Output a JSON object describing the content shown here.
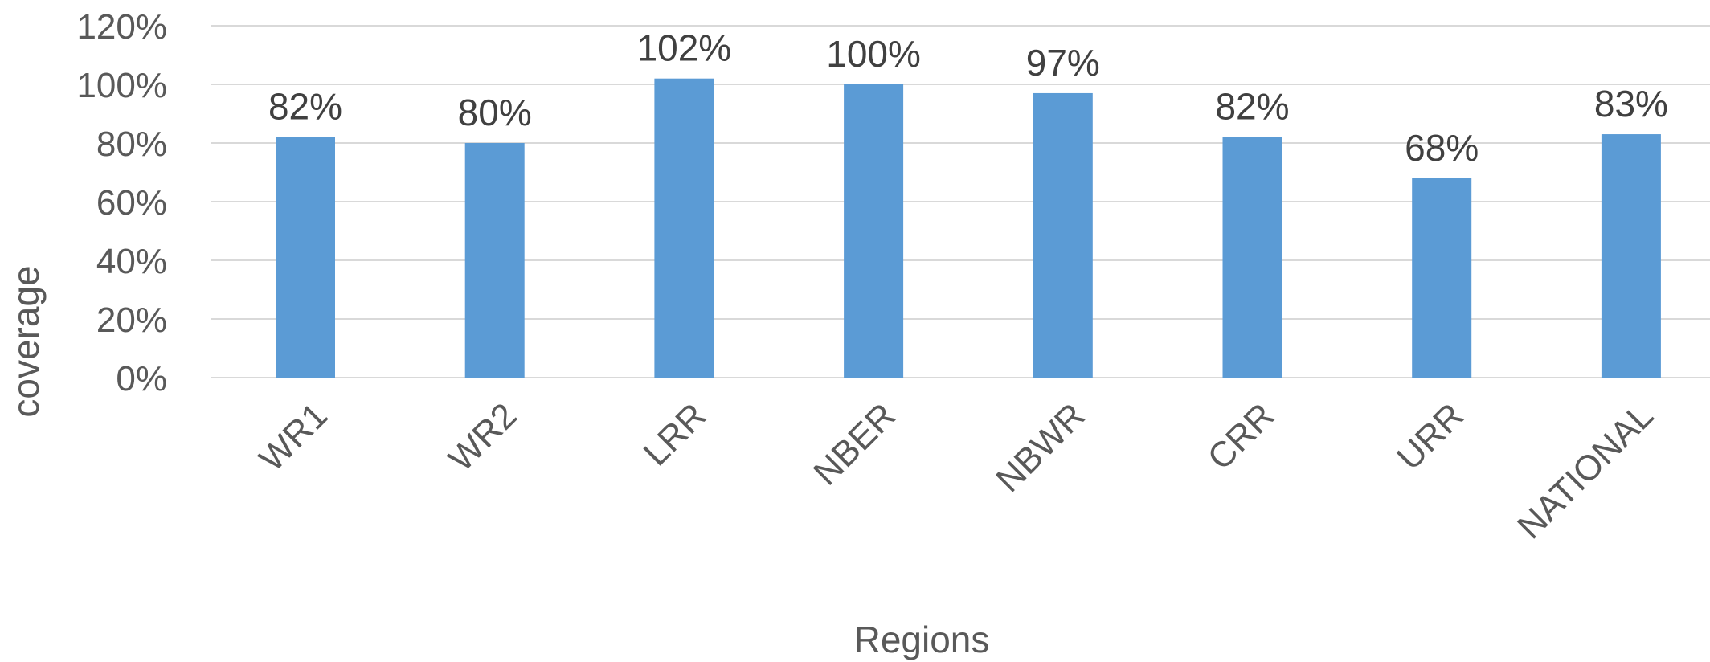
{
  "chart_data": {
    "type": "bar",
    "categories": [
      "WR1",
      "WR2",
      "LRR",
      "NBER",
      "NBWR",
      "CRR",
      "URR",
      "NATIONAL"
    ],
    "values": [
      82,
      80,
      102,
      100,
      97,
      82,
      68,
      83
    ],
    "data_labels": [
      "82%",
      "80%",
      "102%",
      "100%",
      "97%",
      "82%",
      "68%",
      "83%"
    ],
    "xlabel": "Regions",
    "ylabel": "coverage",
    "ylim": [
      0,
      120
    ],
    "yticks": [
      0,
      20,
      40,
      60,
      80,
      100,
      120
    ],
    "ytick_labels": [
      "0%",
      "20%",
      "40%",
      "60%",
      "80%",
      "100%",
      "120%"
    ],
    "grid": true,
    "legend": false,
    "bar_color": "#5b9bd5"
  }
}
